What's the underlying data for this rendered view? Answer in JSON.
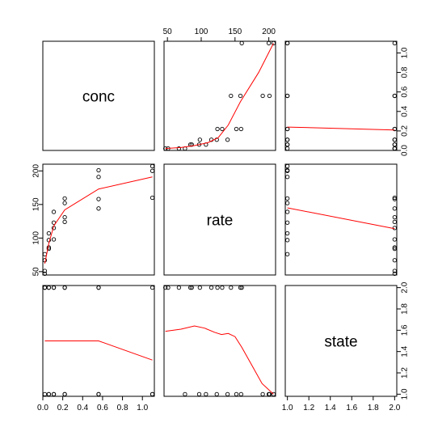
{
  "chart_data": {
    "type": "scatter",
    "variables": [
      "conc",
      "rate",
      "state"
    ],
    "axes": {
      "conc": {
        "range": [
          0.0,
          1.12
        ],
        "ticks": [
          0.0,
          0.2,
          0.4,
          0.6,
          0.8,
          1.0
        ],
        "tick_labels": [
          "0.0",
          "0.2",
          "0.4",
          "0.6",
          "0.8",
          "1.0"
        ]
      },
      "rate": {
        "range": [
          45,
          210
        ],
        "ticks": [
          50,
          100,
          150,
          200
        ],
        "tick_labels": [
          "50",
          "100",
          "150",
          "200"
        ]
      },
      "state": {
        "range": [
          0.98,
          2.02
        ],
        "ticks": [
          1.0,
          1.2,
          1.4,
          1.6,
          1.8,
          2.0
        ],
        "tick_labels": [
          "1.0",
          "1.2",
          "1.4",
          "1.6",
          "1.8",
          "2.0"
        ]
      }
    },
    "observations": [
      {
        "conc": 0.02,
        "rate": 76,
        "state": 1
      },
      {
        "conc": 0.02,
        "rate": 47,
        "state": 2
      },
      {
        "conc": 0.06,
        "rate": 97,
        "state": 1
      },
      {
        "conc": 0.06,
        "rate": 107,
        "state": 1
      },
      {
        "conc": 0.11,
        "rate": 123,
        "state": 1
      },
      {
        "conc": 0.11,
        "rate": 139,
        "state": 1
      },
      {
        "conc": 0.22,
        "rate": 159,
        "state": 1
      },
      {
        "conc": 0.22,
        "rate": 152,
        "state": 1
      },
      {
        "conc": 0.56,
        "rate": 191,
        "state": 1
      },
      {
        "conc": 0.56,
        "rate": 201,
        "state": 1
      },
      {
        "conc": 1.1,
        "rate": 207,
        "state": 1
      },
      {
        "conc": 1.1,
        "rate": 200,
        "state": 1
      },
      {
        "conc": 0.02,
        "rate": 67,
        "state": 2
      },
      {
        "conc": 0.02,
        "rate": 51,
        "state": 2
      },
      {
        "conc": 0.06,
        "rate": 84,
        "state": 2
      },
      {
        "conc": 0.06,
        "rate": 86,
        "state": 2
      },
      {
        "conc": 0.11,
        "rate": 98,
        "state": 2
      },
      {
        "conc": 0.11,
        "rate": 115,
        "state": 2
      },
      {
        "conc": 0.22,
        "rate": 131,
        "state": 2
      },
      {
        "conc": 0.22,
        "rate": 124,
        "state": 2
      },
      {
        "conc": 0.56,
        "rate": 144,
        "state": 2
      },
      {
        "conc": 0.56,
        "rate": 158,
        "state": 2
      },
      {
        "conc": 1.1,
        "rate": 160,
        "state": 2
      }
    ],
    "smoothers": {
      "rate_vs_conc": [
        [
          0.02,
          62
        ],
        [
          0.06,
          92
        ],
        [
          0.11,
          118
        ],
        [
          0.22,
          142
        ],
        [
          0.56,
          173
        ],
        [
          1.1,
          191
        ]
      ],
      "conc_vs_rate": [
        [
          47,
          0.02
        ],
        [
          70,
          0.03
        ],
        [
          90,
          0.05
        ],
        [
          110,
          0.08
        ],
        [
          125,
          0.13
        ],
        [
          140,
          0.26
        ],
        [
          158,
          0.5
        ],
        [
          185,
          0.8
        ],
        [
          207,
          1.1
        ]
      ],
      "state_vs_conc": [
        [
          0.02,
          1.5
        ],
        [
          0.56,
          1.5
        ],
        [
          1.1,
          1.32
        ]
      ],
      "conc_vs_state": [
        [
          1.0,
          0.24
        ],
        [
          2.0,
          0.21
        ]
      ],
      "state_vs_rate": [
        [
          47,
          1.59
        ],
        [
          70,
          1.61
        ],
        [
          90,
          1.64
        ],
        [
          105,
          1.62
        ],
        [
          120,
          1.58
        ],
        [
          130,
          1.56
        ],
        [
          140,
          1.57
        ],
        [
          150,
          1.54
        ],
        [
          160,
          1.44
        ],
        [
          175,
          1.27
        ],
        [
          190,
          1.1
        ],
        [
          207,
          1.0
        ]
      ],
      "rate_vs_state": [
        [
          1.0,
          145
        ],
        [
          2.0,
          114
        ]
      ]
    },
    "grid": false,
    "legend": "none",
    "colors": {
      "points": "#000000",
      "smoother": "#ff0000",
      "frame": "#000000"
    }
  }
}
